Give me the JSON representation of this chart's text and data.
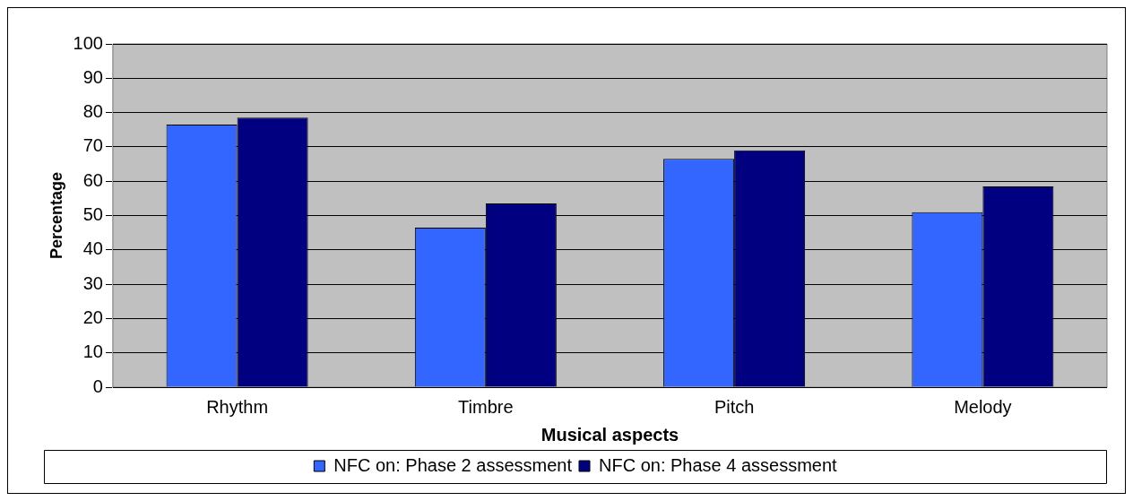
{
  "chart_data": {
    "type": "bar",
    "xlabel": "Musical aspects",
    "ylabel": "Percentage",
    "categories": [
      "Rhythm",
      "Timbre",
      "Pitch",
      "Melody"
    ],
    "series": [
      {
        "name": "NFC on: Phase 2 assessment",
        "color": "#3366ff",
        "values": [
          76.5,
          46.5,
          66.5,
          51
        ]
      },
      {
        "name": "NFC on: Phase 4 assessment",
        "color": "#000080",
        "values": [
          78.5,
          53.5,
          69,
          58.5
        ]
      }
    ],
    "ylim": [
      0,
      100
    ],
    "yticks": [
      0,
      10,
      20,
      30,
      40,
      50,
      60,
      70,
      80,
      90,
      100
    ],
    "grid": "y",
    "legend": "bottom"
  }
}
